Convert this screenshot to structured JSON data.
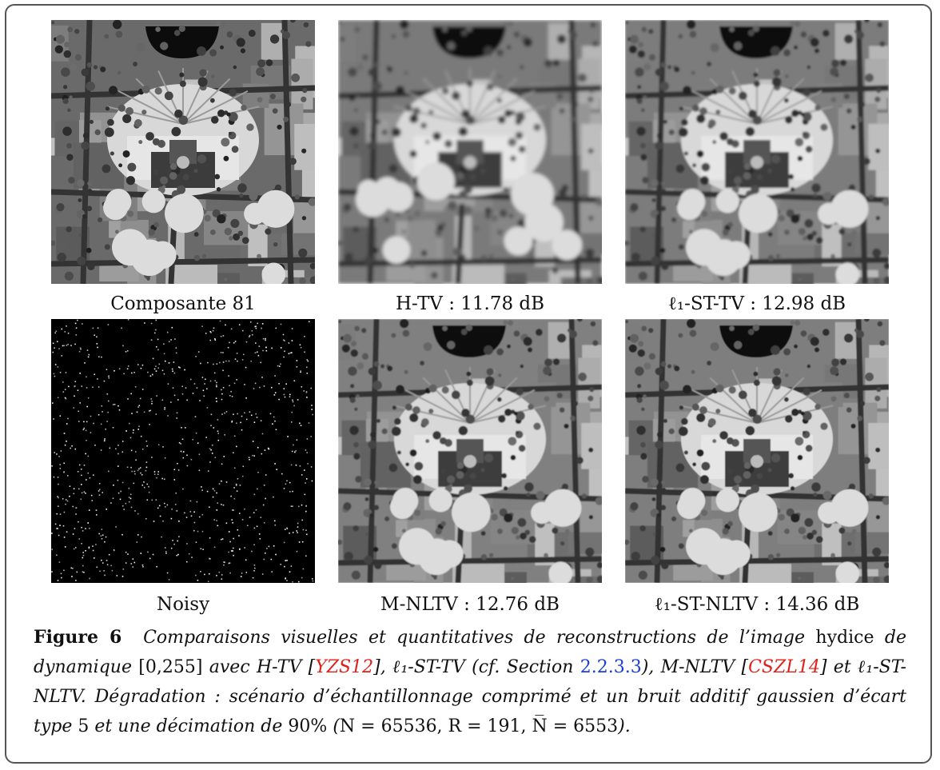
{
  "panels": [
    {
      "label": "Composante 81",
      "style": "sharp"
    },
    {
      "label": "H-TV : 11.78 dB",
      "style": "blur"
    },
    {
      "label": "ℓ₁-ST-TV : 12.98 dB",
      "style": "smooth"
    },
    {
      "label": "Noisy",
      "style": "noisy"
    },
    {
      "label": "M-NLTV : 12.76 dB",
      "style": "nltv"
    },
    {
      "label": "ℓ₁-ST-NLTV : 14.36 dB",
      "style": "nltv2"
    }
  ],
  "caption": {
    "figure_label": "Figure 6",
    "t1": "Comparaisons visuelles et quantitatives de reconstructions de l’image",
    "t2": "hydice",
    "t3": "de dynamique",
    "t4": "[0,255]",
    "t5": "avec H-TV [",
    "ref1": "YZS12",
    "t6": "], ℓ₁-ST-TV (cf. Section",
    "ref2": "2.2.3.3",
    "t7": "), M-NLTV [",
    "ref3": "CSZL14",
    "t8": "] et ℓ₁-ST-NLTV. Dégradation : scénario d’échantillonnage comprimé et un bruit additif gaussien d’écart type",
    "t9": "5",
    "t10": "et une décimation de",
    "t11": "90%",
    "t12": "(",
    "t13": "N = 65536, R = 191, N̅ = 6553",
    "t14": ")."
  }
}
